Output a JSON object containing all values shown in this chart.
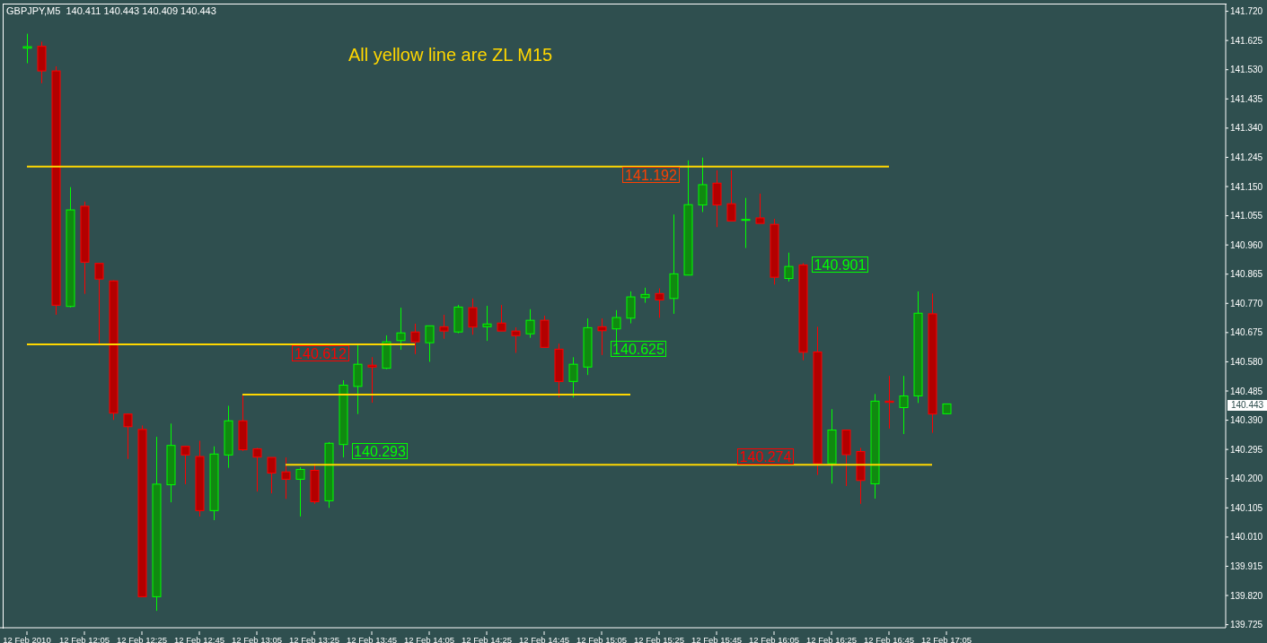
{
  "chart_data": {
    "type": "candlestick",
    "title": "GBPJPY,M5  140.411 140.443 140.409 140.443",
    "categories": [
      "12 Feb 2010",
      null,
      null,
      null,
      "12 Feb 12:05",
      null,
      null,
      null,
      "12 Feb 12:25",
      null,
      null,
      null,
      "12 Feb 12:45",
      null,
      null,
      null,
      "12 Feb 13:05",
      null,
      null,
      null,
      "12 Feb 13:25",
      null,
      null,
      null,
      "12 Feb 13:45",
      null,
      null,
      null,
      "12 Feb 14:05",
      null,
      null,
      null,
      "12 Feb 14:25",
      null,
      null,
      null,
      "12 Feb 14:45",
      null,
      null,
      null,
      "12 Feb 15:05",
      null,
      null,
      null,
      "12 Feb 15:25",
      null,
      null,
      null,
      "12 Feb 15:45",
      null,
      null,
      null,
      "12 Feb 16:05",
      null,
      null,
      null,
      "12 Feb 16:25",
      null,
      null,
      null,
      "12 Feb 16:45",
      null,
      null,
      null,
      "12 Feb 17:05"
    ],
    "ohlc": [
      [
        141.6,
        141.647,
        141.551,
        141.605
      ],
      [
        141.606,
        141.621,
        141.486,
        141.526
      ],
      [
        141.526,
        141.541,
        140.733,
        140.764
      ],
      [
        140.76,
        141.148,
        140.757,
        141.074
      ],
      [
        141.086,
        141.101,
        140.801,
        140.904
      ],
      [
        140.9,
        140.9,
        140.637,
        140.849
      ],
      [
        140.843,
        140.845,
        140.391,
        140.413
      ],
      [
        140.41,
        140.412,
        140.264,
        140.369
      ],
      [
        140.36,
        140.373,
        139.816,
        139.816
      ],
      [
        139.816,
        140.336,
        139.77,
        140.182
      ],
      [
        140.18,
        140.379,
        140.123,
        140.308
      ],
      [
        140.305,
        140.307,
        140.182,
        140.277
      ],
      [
        140.272,
        140.323,
        140.077,
        140.096
      ],
      [
        140.096,
        140.305,
        140.065,
        140.28
      ],
      [
        140.277,
        140.437,
        140.235,
        140.388
      ],
      [
        140.388,
        140.471,
        140.29,
        140.294
      ],
      [
        140.297,
        140.3,
        140.158,
        140.27
      ],
      [
        140.269,
        140.269,
        140.152,
        140.218
      ],
      [
        140.222,
        140.269,
        140.134,
        140.198
      ],
      [
        140.198,
        140.237,
        140.077,
        140.23
      ],
      [
        140.227,
        140.249,
        140.118,
        140.125
      ],
      [
        140.128,
        140.319,
        140.105,
        140.315
      ],
      [
        140.311,
        140.52,
        140.269,
        140.504
      ],
      [
        140.5,
        140.634,
        140.41,
        140.572
      ],
      [
        140.569,
        140.595,
        140.447,
        140.563
      ],
      [
        140.559,
        140.666,
        140.556,
        140.645
      ],
      [
        140.649,
        140.756,
        140.619,
        140.674
      ],
      [
        140.677,
        140.704,
        140.605,
        140.645
      ],
      [
        140.642,
        140.697,
        140.58,
        140.697
      ],
      [
        140.694,
        140.733,
        140.655,
        140.68
      ],
      [
        140.677,
        140.765,
        140.673,
        140.758
      ],
      [
        140.756,
        140.786,
        140.668,
        140.693
      ],
      [
        140.694,
        140.762,
        140.648,
        140.703
      ],
      [
        140.706,
        140.765,
        140.68,
        140.68
      ],
      [
        140.68,
        140.692,
        140.609,
        140.665
      ],
      [
        140.671,
        140.751,
        140.658,
        140.715
      ],
      [
        140.715,
        140.73,
        140.627,
        140.627
      ],
      [
        140.621,
        140.639,
        140.464,
        140.516
      ],
      [
        140.516,
        140.595,
        140.464,
        140.572
      ],
      [
        140.563,
        140.721,
        140.537,
        140.691
      ],
      [
        140.694,
        140.721,
        140.602,
        140.681
      ],
      [
        140.687,
        140.748,
        140.639,
        140.724
      ],
      [
        140.722,
        140.809,
        140.705,
        140.791
      ],
      [
        140.789,
        140.821,
        140.772,
        140.799
      ],
      [
        140.802,
        140.819,
        140.723,
        140.781
      ],
      [
        140.786,
        141.059,
        140.736,
        140.866
      ],
      [
        140.862,
        141.235,
        140.862,
        141.091
      ],
      [
        141.09,
        141.244,
        141.067,
        141.156
      ],
      [
        141.161,
        141.203,
        141.018,
        141.09
      ],
      [
        141.094,
        141.203,
        141.038,
        141.038
      ],
      [
        141.04,
        141.113,
        140.95,
        141.043
      ],
      [
        141.048,
        141.127,
        141.03,
        141.03
      ],
      [
        141.027,
        141.045,
        140.831,
        140.855
      ],
      [
        140.851,
        140.935,
        140.841,
        140.89
      ],
      [
        140.895,
        140.901,
        140.585,
        140.611
      ],
      [
        140.612,
        140.694,
        140.212,
        140.249
      ],
      [
        140.249,
        140.426,
        140.184,
        140.358
      ],
      [
        140.358,
        140.358,
        140.176,
        140.278
      ],
      [
        140.288,
        140.3,
        140.118,
        140.194
      ],
      [
        140.183,
        140.475,
        140.135,
        140.452
      ],
      [
        140.452,
        140.534,
        140.363,
        140.448
      ],
      [
        140.431,
        140.534,
        140.345,
        140.469
      ],
      [
        140.469,
        140.809,
        140.446,
        140.738
      ],
      [
        140.736,
        140.802,
        140.349,
        140.41
      ],
      [
        140.411,
        140.443,
        140.409,
        140.443
      ]
    ],
    "series": [
      {
        "type": "line",
        "color": "#ffd700",
        "values": [
          141.215,
          141.215,
          141.215,
          141.215,
          141.215,
          141.215,
          141.215,
          141.215,
          141.215,
          141.215,
          141.215,
          141.215,
          141.215,
          141.215,
          141.215,
          141.215,
          141.215,
          141.215,
          141.215,
          141.215,
          141.215,
          141.215,
          141.215,
          141.215,
          141.215,
          141.215,
          141.215,
          141.215,
          141.215,
          141.215,
          141.215,
          141.215,
          141.215,
          141.215,
          141.215,
          141.215,
          141.215,
          141.215,
          141.215,
          141.215,
          141.215,
          141.215,
          141.215,
          141.215,
          141.215,
          141.215,
          141.215,
          141.215,
          141.215,
          141.215,
          141.215,
          141.215,
          141.215,
          141.215,
          141.215,
          141.215,
          141.215,
          141.215,
          141.215,
          141.215,
          141.215,
          null,
          null,
          null,
          null
        ]
      },
      {
        "type": "line",
        "color": "#ffd700",
        "values": [
          140.637,
          140.637,
          140.637,
          140.637,
          140.637,
          140.637,
          140.637,
          140.637,
          140.637,
          140.637,
          140.637,
          140.637,
          140.637,
          140.637,
          140.637,
          140.637,
          140.637,
          140.637,
          140.637,
          140.637,
          140.637,
          140.637,
          140.637,
          140.637,
          140.637,
          140.637,
          140.637,
          140.637,
          null,
          null,
          null,
          null,
          null,
          null,
          null,
          null,
          null,
          null,
          null,
          null,
          null,
          null,
          null,
          null,
          null,
          null,
          null,
          null,
          null,
          null,
          null,
          null,
          null,
          null,
          null,
          null,
          null,
          null,
          null,
          null,
          null,
          null,
          null,
          null,
          null
        ]
      },
      {
        "type": "line",
        "color": "#ffd700",
        "values": [
          null,
          null,
          null,
          null,
          null,
          null,
          null,
          null,
          null,
          null,
          null,
          null,
          null,
          null,
          null,
          140.473,
          140.473,
          140.473,
          140.473,
          140.473,
          140.473,
          140.473,
          140.473,
          140.473,
          140.473,
          140.473,
          140.473,
          140.473,
          140.473,
          140.473,
          140.473,
          140.473,
          140.473,
          140.473,
          140.473,
          140.473,
          140.473,
          140.473,
          140.473,
          140.473,
          140.473,
          140.473,
          140.473,
          null,
          null,
          null,
          null,
          null,
          null,
          null,
          null,
          null,
          null,
          null,
          null,
          null,
          null,
          null,
          null,
          null,
          null,
          null,
          null,
          null,
          null
        ]
      },
      {
        "type": "line",
        "color": "#ffd700",
        "values": [
          null,
          null,
          null,
          null,
          null,
          null,
          null,
          null,
          null,
          null,
          null,
          null,
          null,
          null,
          null,
          null,
          null,
          null,
          140.245,
          140.245,
          140.245,
          140.245,
          140.245,
          140.245,
          140.245,
          140.245,
          140.245,
          140.245,
          140.245,
          140.245,
          140.245,
          140.245,
          140.245,
          140.245,
          140.245,
          140.245,
          140.245,
          140.245,
          140.245,
          140.245,
          140.245,
          140.245,
          140.245,
          140.245,
          140.245,
          140.245,
          140.245,
          140.245,
          140.245,
          140.245,
          140.245,
          140.245,
          140.245,
          140.245,
          140.245,
          140.245,
          140.245,
          140.245,
          140.245,
          140.245,
          140.245,
          140.245,
          140.245,
          140.245,
          null
        ]
      }
    ],
    "ylim": [
      139.715,
      141.745
    ],
    "yticks": [
      {
        "value": 141.72,
        "label": "141.720"
      },
      {
        "value": 141.625,
        "label": "141.625"
      },
      {
        "value": 141.53,
        "label": "141.530"
      },
      {
        "value": 141.435,
        "label": "141.435"
      },
      {
        "value": 141.34,
        "label": "141.340"
      },
      {
        "value": 141.245,
        "label": "141.245"
      },
      {
        "value": 141.15,
        "label": "141.150"
      },
      {
        "value": 141.055,
        "label": "141.055"
      },
      {
        "value": 140.96,
        "label": "140.960"
      },
      {
        "value": 140.865,
        "label": "140.865"
      },
      {
        "value": 140.77,
        "label": "140.770"
      },
      {
        "value": 140.675,
        "label": "140.675"
      },
      {
        "value": 140.58,
        "label": "140.580"
      },
      {
        "value": 140.485,
        "label": "140.485"
      },
      {
        "value": 140.39,
        "label": "140.390"
      },
      {
        "value": 140.295,
        "label": "140.295"
      },
      {
        "value": 140.2,
        "label": "140.200"
      },
      {
        "value": 140.105,
        "label": "140.105"
      },
      {
        "value": 140.01,
        "label": "140.010"
      },
      {
        "value": 139.915,
        "label": "139.915"
      },
      {
        "value": 139.82,
        "label": "139.820"
      },
      {
        "value": 139.725,
        "label": "139.725"
      }
    ],
    "annotations": [
      "All yellow line are ZL M15",
      "141.192",
      "140.612",
      "140.274",
      "140.293",
      "140.625",
      "140.901",
      "140.443"
    ]
  }
}
